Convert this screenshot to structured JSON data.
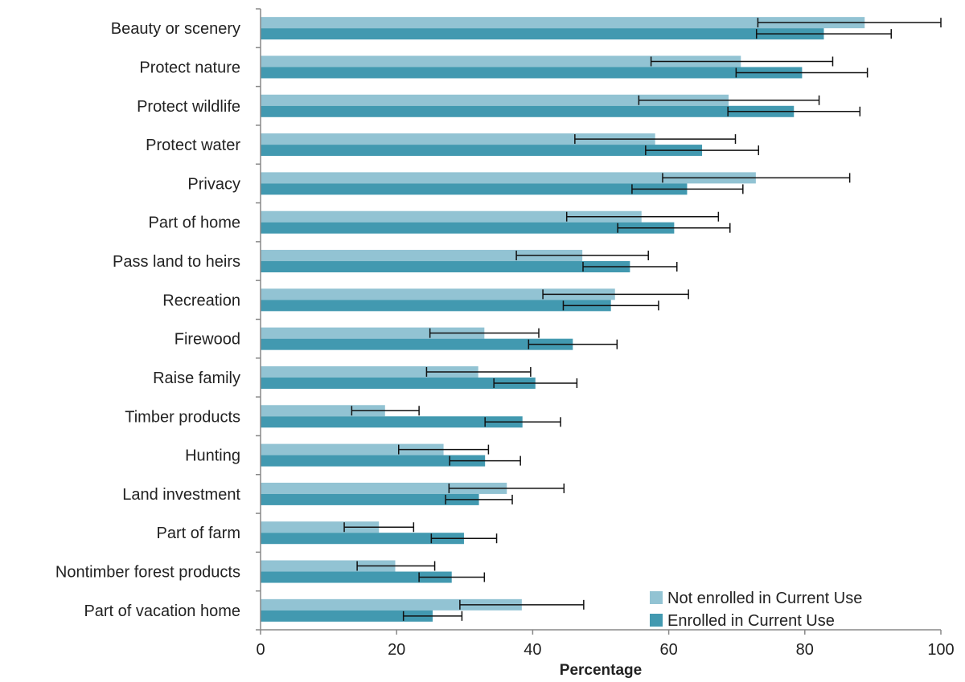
{
  "chart_data": {
    "type": "bar",
    "orientation": "horizontal",
    "title": "",
    "xlabel": "Percentage",
    "ylabel": "",
    "xlim": [
      0,
      100
    ],
    "x_ticks": [
      0,
      20,
      40,
      60,
      80,
      100
    ],
    "grid": false,
    "legend_position": "bottom-right",
    "categories": [
      "Beauty or scenery",
      "Protect nature",
      "Protect wildlife",
      "Protect water",
      "Privacy",
      "Part of home",
      "Pass land to heirs",
      "Recreation",
      "Firewood",
      "Raise family",
      "Timber products",
      "Hunting",
      "Land investment",
      "Part of farm",
      "Nontimber forest products",
      "Part of vacation home"
    ],
    "series": [
      {
        "name": "Not enrolled in Current Use",
        "color": "#92c3d3",
        "values": [
          88.8,
          70.6,
          68.8,
          58.0,
          72.8,
          56.0,
          47.3,
          52.1,
          32.9,
          32.0,
          18.3,
          26.9,
          36.2,
          17.4,
          19.8,
          38.4
        ],
        "err_low": [
          73.1,
          57.4,
          55.6,
          46.2,
          59.1,
          45.0,
          37.6,
          41.5,
          24.9,
          24.4,
          13.4,
          20.3,
          27.7,
          12.3,
          14.2,
          29.3
        ],
        "err_high": [
          100.0,
          84.1,
          82.1,
          69.8,
          86.6,
          67.3,
          57.0,
          62.9,
          40.9,
          39.7,
          23.3,
          33.5,
          44.6,
          22.5,
          25.6,
          47.5
        ]
      },
      {
        "name": "Enrolled in Current Use",
        "color": "#4299b0",
        "values": [
          82.8,
          79.6,
          78.4,
          64.9,
          62.7,
          60.8,
          54.3,
          51.5,
          45.9,
          40.4,
          38.5,
          33.0,
          32.1,
          29.9,
          28.1,
          25.3
        ],
        "err_low": [
          72.9,
          69.9,
          68.7,
          56.6,
          54.6,
          52.5,
          47.4,
          44.5,
          39.4,
          34.3,
          33.0,
          27.8,
          27.2,
          25.1,
          23.3,
          21.0
        ],
        "err_high": [
          92.7,
          89.2,
          88.1,
          73.2,
          70.9,
          69.0,
          61.2,
          58.5,
          52.4,
          46.5,
          44.1,
          38.2,
          37.0,
          34.7,
          32.9,
          29.6
        ]
      }
    ]
  }
}
